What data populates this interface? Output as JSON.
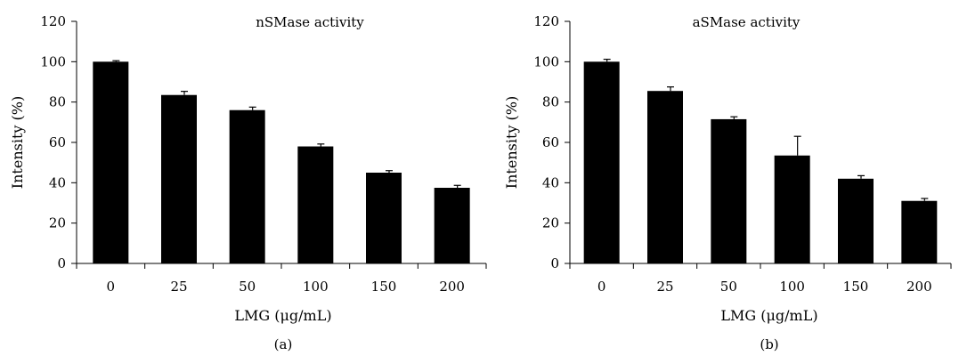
{
  "chart_data": [
    {
      "type": "bar",
      "title": "nSMase activity",
      "panel_label": "(a)",
      "xlabel": "LMG (μg/mL)",
      "ylabel": "Intensity (%)",
      "categories": [
        "0",
        "25",
        "50",
        "100",
        "150",
        "200"
      ],
      "values": [
        100,
        83.5,
        76,
        58,
        45,
        37.5
      ],
      "errors": [
        0.5,
        1.8,
        1.5,
        1.2,
        1.0,
        1.2
      ],
      "ylim": [
        0,
        120
      ],
      "yticks": [
        "0",
        "20",
        "40",
        "60",
        "80",
        "100",
        "120"
      ],
      "grid": false,
      "bar_color": "#000000"
    },
    {
      "type": "bar",
      "title": "aSMase activity",
      "panel_label": "(b)",
      "xlabel": "LMG (μg/mL)",
      "ylabel": "Intensity (%)",
      "categories": [
        "0",
        "25",
        "50",
        "100",
        "150",
        "200"
      ],
      "values": [
        100,
        85.5,
        71.5,
        53.5,
        42,
        31
      ],
      "errors": [
        1.2,
        2.0,
        1.2,
        9.5,
        1.5,
        1.2
      ],
      "ylim": [
        0,
        120
      ],
      "yticks": [
        "0",
        "20",
        "40",
        "60",
        "80",
        "100",
        "120"
      ],
      "grid": false,
      "bar_color": "#000000"
    }
  ]
}
